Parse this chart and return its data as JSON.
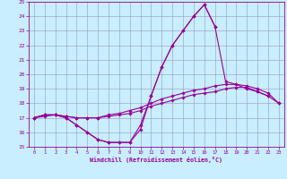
{
  "xlabel": "Windchill (Refroidissement éolien,°C)",
  "x_values": [
    0,
    1,
    2,
    3,
    4,
    5,
    6,
    7,
    8,
    9,
    10,
    11,
    12,
    13,
    14,
    15,
    16,
    17,
    18,
    19,
    20,
    21,
    22,
    23
  ],
  "line1": [
    17.0,
    17.2,
    17.2,
    17.0,
    16.5,
    16.0,
    15.5,
    15.3,
    15.3,
    15.3,
    16.2,
    18.5,
    20.5,
    22.0,
    23.0,
    24.0,
    24.8,
    23.3,
    null,
    null,
    null,
    null,
    null,
    null
  ],
  "line2": [
    17.0,
    17.2,
    17.2,
    17.0,
    16.5,
    16.0,
    15.5,
    15.3,
    15.3,
    15.3,
    16.5,
    18.5,
    20.5,
    22.0,
    23.0,
    24.0,
    24.8,
    23.3,
    19.5,
    19.3,
    19.0,
    18.8,
    18.5,
    null
  ],
  "line3": [
    17.0,
    17.2,
    17.2,
    17.1,
    17.0,
    17.0,
    17.0,
    17.2,
    17.3,
    17.5,
    17.7,
    18.0,
    18.3,
    18.5,
    18.7,
    18.9,
    19.0,
    19.2,
    19.3,
    19.3,
    19.2,
    19.0,
    18.7,
    18.0
  ],
  "line4": [
    17.0,
    17.1,
    17.2,
    17.1,
    17.0,
    17.0,
    17.0,
    17.1,
    17.2,
    17.3,
    17.5,
    17.8,
    18.0,
    18.2,
    18.4,
    18.6,
    18.7,
    18.8,
    19.0,
    19.1,
    19.1,
    18.8,
    18.5,
    18.0
  ],
  "line_color": "#990099",
  "bg_color": "#c8eeff",
  "grid_color": "#9999bb",
  "ylim": [
    15,
    25
  ],
  "xlim": [
    -0.5,
    23.5
  ],
  "yticks": [
    15,
    16,
    17,
    18,
    19,
    20,
    21,
    22,
    23,
    24,
    25
  ],
  "xticks": [
    0,
    1,
    2,
    3,
    4,
    5,
    6,
    7,
    8,
    9,
    10,
    11,
    12,
    13,
    14,
    15,
    16,
    17,
    18,
    19,
    20,
    21,
    22,
    23
  ]
}
